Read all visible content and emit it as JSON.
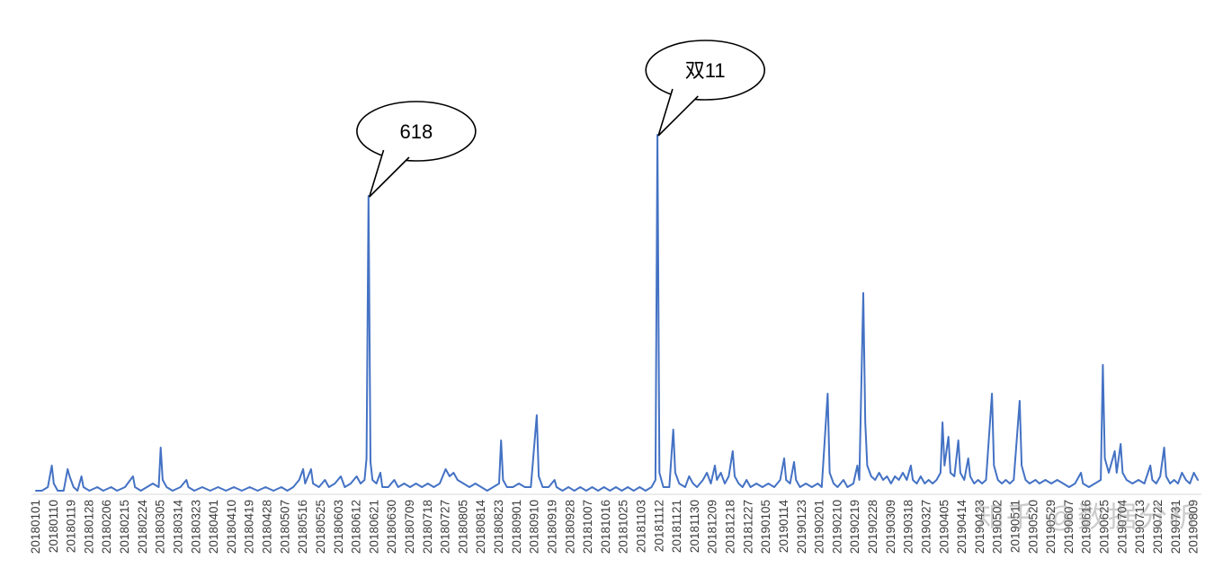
{
  "chart_data": {
    "type": "line",
    "title": "",
    "xlabel": "",
    "ylabel": "",
    "y_axis_visible": false,
    "grid": false,
    "legend": "none",
    "x_start_date": "20180101",
    "x_tick_interval_days": 9,
    "n_days": 588,
    "y_scale_note": "relative daily index, peak (double-11) = 100",
    "ylim": [
      0,
      100
    ],
    "x_tick_labels": [
      "20180101",
      "20180110",
      "20180119",
      "20180128",
      "20180206",
      "20180215",
      "20180224",
      "20180305",
      "20180314",
      "20180323",
      "20180401",
      "20180410",
      "20180419",
      "20180428",
      "20180507",
      "20180516",
      "20180525",
      "20180603",
      "20180612",
      "20180621",
      "20180630",
      "20180709",
      "20180718",
      "20180727",
      "20180805",
      "20180814",
      "20180823",
      "20180901",
      "20180910",
      "20180919",
      "20180928",
      "20181007",
      "20181016",
      "20181025",
      "20181103",
      "20181112",
      "20181121",
      "20181130",
      "20181209",
      "20181218",
      "20181227",
      "20190105",
      "20190114",
      "20190123",
      "20190201",
      "20190210",
      "20190219",
      "20190228",
      "20190309",
      "20190318",
      "20190327",
      "20190405",
      "20190414",
      "20190423",
      "20190502",
      "20190511",
      "20190520",
      "20190529",
      "20190607",
      "20190616",
      "20190625",
      "20190704",
      "20190713",
      "20190722",
      "20190731",
      "20190809"
    ],
    "series": [
      {
        "name": "daily-index",
        "color": "#4472C4",
        "points": [
          [
            0,
            1
          ],
          [
            3,
            1
          ],
          [
            6,
            2
          ],
          [
            8,
            8
          ],
          [
            9,
            3
          ],
          [
            11,
            1
          ],
          [
            14,
            1
          ],
          [
            16,
            7
          ],
          [
            17,
            5
          ],
          [
            19,
            2
          ],
          [
            21,
            1
          ],
          [
            23,
            5
          ],
          [
            24,
            2
          ],
          [
            27,
            1
          ],
          [
            31,
            2
          ],
          [
            34,
            1
          ],
          [
            38,
            2
          ],
          [
            41,
            1
          ],
          [
            45,
            2
          ],
          [
            49,
            5
          ],
          [
            50,
            2
          ],
          [
            53,
            1
          ],
          [
            56,
            2
          ],
          [
            59,
            3
          ],
          [
            62,
            2
          ],
          [
            63,
            13
          ],
          [
            64,
            4
          ],
          [
            66,
            2
          ],
          [
            69,
            1
          ],
          [
            73,
            2
          ],
          [
            76,
            4
          ],
          [
            77,
            2
          ],
          [
            80,
            1
          ],
          [
            84,
            2
          ],
          [
            88,
            1
          ],
          [
            92,
            2
          ],
          [
            96,
            1
          ],
          [
            100,
            2
          ],
          [
            104,
            1
          ],
          [
            108,
            2
          ],
          [
            112,
            1
          ],
          [
            116,
            2
          ],
          [
            120,
            1
          ],
          [
            124,
            2
          ],
          [
            127,
            1
          ],
          [
            130,
            2
          ],
          [
            133,
            4
          ],
          [
            135,
            7
          ],
          [
            136,
            3
          ],
          [
            139,
            7
          ],
          [
            140,
            3
          ],
          [
            143,
            2
          ],
          [
            146,
            4
          ],
          [
            148,
            2
          ],
          [
            151,
            3
          ],
          [
            154,
            5
          ],
          [
            156,
            2
          ],
          [
            159,
            3
          ],
          [
            162,
            5
          ],
          [
            164,
            3
          ],
          [
            166,
            4
          ],
          [
            167,
            10
          ],
          [
            168,
            83
          ],
          [
            169,
            9
          ],
          [
            170,
            4
          ],
          [
            172,
            3
          ],
          [
            174,
            6
          ],
          [
            175,
            2
          ],
          [
            178,
            2
          ],
          [
            181,
            4
          ],
          [
            183,
            2
          ],
          [
            186,
            3
          ],
          [
            189,
            2
          ],
          [
            192,
            3
          ],
          [
            195,
            2
          ],
          [
            198,
            3
          ],
          [
            201,
            2
          ],
          [
            204,
            3
          ],
          [
            207,
            7
          ],
          [
            209,
            5
          ],
          [
            211,
            6
          ],
          [
            213,
            4
          ],
          [
            216,
            3
          ],
          [
            219,
            2
          ],
          [
            222,
            3
          ],
          [
            225,
            2
          ],
          [
            228,
            1
          ],
          [
            231,
            2
          ],
          [
            234,
            3
          ],
          [
            235,
            15
          ],
          [
            236,
            4
          ],
          [
            238,
            2
          ],
          [
            241,
            2
          ],
          [
            244,
            3
          ],
          [
            247,
            2
          ],
          [
            250,
            2
          ],
          [
            253,
            22
          ],
          [
            254,
            5
          ],
          [
            256,
            2
          ],
          [
            259,
            2
          ],
          [
            262,
            4
          ],
          [
            263,
            2
          ],
          [
            266,
            1
          ],
          [
            269,
            2
          ],
          [
            272,
            1
          ],
          [
            275,
            2
          ],
          [
            278,
            1
          ],
          [
            281,
            2
          ],
          [
            284,
            1
          ],
          [
            287,
            2
          ],
          [
            290,
            1
          ],
          [
            293,
            2
          ],
          [
            296,
            1
          ],
          [
            299,
            2
          ],
          [
            302,
            1
          ],
          [
            305,
            2
          ],
          [
            308,
            1
          ],
          [
            311,
            2
          ],
          [
            313,
            4
          ],
          [
            314,
            100
          ],
          [
            315,
            6
          ],
          [
            317,
            2
          ],
          [
            320,
            2
          ],
          [
            322,
            18
          ],
          [
            323,
            6
          ],
          [
            325,
            3
          ],
          [
            328,
            2
          ],
          [
            330,
            5
          ],
          [
            332,
            3
          ],
          [
            334,
            2
          ],
          [
            337,
            4
          ],
          [
            339,
            6
          ],
          [
            341,
            3
          ],
          [
            343,
            8
          ],
          [
            344,
            4
          ],
          [
            346,
            6
          ],
          [
            348,
            3
          ],
          [
            350,
            5
          ],
          [
            352,
            12
          ],
          [
            353,
            5
          ],
          [
            355,
            3
          ],
          [
            357,
            2
          ],
          [
            359,
            4
          ],
          [
            361,
            2
          ],
          [
            364,
            3
          ],
          [
            367,
            2
          ],
          [
            370,
            3
          ],
          [
            373,
            2
          ],
          [
            376,
            4
          ],
          [
            378,
            10
          ],
          [
            379,
            4
          ],
          [
            381,
            3
          ],
          [
            383,
            9
          ],
          [
            384,
            4
          ],
          [
            386,
            2
          ],
          [
            389,
            3
          ],
          [
            392,
            2
          ],
          [
            395,
            3
          ],
          [
            397,
            2
          ],
          [
            400,
            28
          ],
          [
            401,
            6
          ],
          [
            403,
            3
          ],
          [
            405,
            2
          ],
          [
            408,
            4
          ],
          [
            410,
            2
          ],
          [
            413,
            3
          ],
          [
            415,
            8
          ],
          [
            416,
            4
          ],
          [
            418,
            56
          ],
          [
            419,
            20
          ],
          [
            420,
            8
          ],
          [
            422,
            5
          ],
          [
            424,
            4
          ],
          [
            426,
            6
          ],
          [
            428,
            4
          ],
          [
            430,
            5
          ],
          [
            432,
            3
          ],
          [
            434,
            5
          ],
          [
            436,
            4
          ],
          [
            438,
            6
          ],
          [
            440,
            4
          ],
          [
            442,
            8
          ],
          [
            443,
            4
          ],
          [
            445,
            3
          ],
          [
            447,
            5
          ],
          [
            449,
            3
          ],
          [
            451,
            4
          ],
          [
            453,
            3
          ],
          [
            455,
            4
          ],
          [
            457,
            6
          ],
          [
            458,
            20
          ],
          [
            459,
            8
          ],
          [
            461,
            16
          ],
          [
            462,
            6
          ],
          [
            464,
            5
          ],
          [
            466,
            15
          ],
          [
            467,
            6
          ],
          [
            469,
            4
          ],
          [
            471,
            10
          ],
          [
            472,
            5
          ],
          [
            474,
            3
          ],
          [
            476,
            4
          ],
          [
            478,
            3
          ],
          [
            480,
            4
          ],
          [
            483,
            28
          ],
          [
            484,
            8
          ],
          [
            486,
            4
          ],
          [
            488,
            3
          ],
          [
            490,
            4
          ],
          [
            492,
            3
          ],
          [
            494,
            4
          ],
          [
            497,
            26
          ],
          [
            498,
            8
          ],
          [
            500,
            4
          ],
          [
            502,
            3
          ],
          [
            505,
            4
          ],
          [
            507,
            3
          ],
          [
            510,
            4
          ],
          [
            513,
            3
          ],
          [
            516,
            4
          ],
          [
            519,
            3
          ],
          [
            522,
            2
          ],
          [
            525,
            3
          ],
          [
            528,
            6
          ],
          [
            529,
            3
          ],
          [
            532,
            2
          ],
          [
            535,
            3
          ],
          [
            538,
            4
          ],
          [
            539,
            36
          ],
          [
            540,
            10
          ],
          [
            542,
            6
          ],
          [
            545,
            12
          ],
          [
            546,
            6
          ],
          [
            548,
            14
          ],
          [
            549,
            6
          ],
          [
            551,
            4
          ],
          [
            554,
            3
          ],
          [
            557,
            4
          ],
          [
            560,
            3
          ],
          [
            563,
            8
          ],
          [
            564,
            4
          ],
          [
            566,
            3
          ],
          [
            568,
            5
          ],
          [
            570,
            13
          ],
          [
            571,
            5
          ],
          [
            573,
            3
          ],
          [
            575,
            4
          ],
          [
            577,
            3
          ],
          [
            579,
            6
          ],
          [
            581,
            4
          ],
          [
            583,
            3
          ],
          [
            585,
            6
          ],
          [
            587,
            4
          ]
        ]
      }
    ],
    "annotations": [
      {
        "label": "618",
        "day": 168,
        "value": 83
      },
      {
        "label": "双11",
        "day": 314,
        "value": 100
      }
    ]
  },
  "watermark": {
    "text": "知乎 @数据分析"
  },
  "colors": {
    "line": "#4472C4",
    "axis": "#D9D9D9",
    "tick_label": "#3b3b3b",
    "callout_stroke": "#000000",
    "callout_fill": "#ffffff"
  }
}
